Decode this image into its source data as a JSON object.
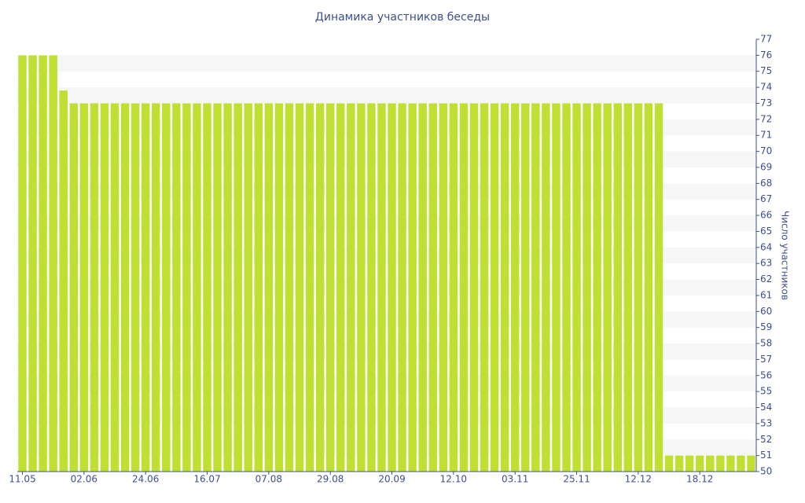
{
  "chart_data": {
    "type": "bar",
    "title": "Динамика участников беседы",
    "y_axis_label": "Число участников",
    "categories": [
      "11.05",
      null,
      null,
      null,
      null,
      null,
      "02.06",
      null,
      null,
      null,
      null,
      null,
      "24.06",
      null,
      null,
      null,
      null,
      null,
      "16.07",
      null,
      null,
      null,
      null,
      null,
      "07.08",
      null,
      null,
      null,
      null,
      null,
      "29.08",
      null,
      null,
      null,
      null,
      null,
      "20.09",
      null,
      null,
      null,
      null,
      null,
      "12.10",
      null,
      null,
      null,
      null,
      null,
      "03.11",
      null,
      null,
      null,
      null,
      null,
      "25.11",
      null,
      null,
      null,
      null,
      null,
      "12.12",
      null,
      null,
      null,
      null,
      null,
      "18.12",
      null,
      null,
      null,
      null,
      null
    ],
    "values": [
      76,
      76,
      76,
      76,
      73.8,
      73,
      73,
      73,
      73,
      73,
      73,
      73,
      73,
      73,
      73,
      73,
      73,
      73,
      73,
      73,
      73,
      73,
      73,
      73,
      73,
      73,
      73,
      73,
      73,
      73,
      73,
      73,
      73,
      73,
      73,
      73,
      73,
      73,
      73,
      73,
      73,
      73,
      73,
      73,
      73,
      73,
      73,
      73,
      73,
      73,
      73,
      73,
      73,
      73,
      73,
      73,
      73,
      73,
      73,
      73,
      73,
      73,
      73,
      51,
      51,
      51,
      51,
      51,
      51,
      51,
      51,
      51
    ],
    "color": "#bfe033",
    "ylim": [
      50,
      77
    ],
    "yticks": [
      50,
      51,
      52,
      53,
      54,
      55,
      56,
      57,
      58,
      59,
      60,
      61,
      62,
      63,
      64,
      65,
      66,
      67,
      68,
      69,
      70,
      71,
      72,
      73,
      74,
      75,
      76,
      77
    ],
    "y_axis_side": "right",
    "grid": "bands"
  }
}
